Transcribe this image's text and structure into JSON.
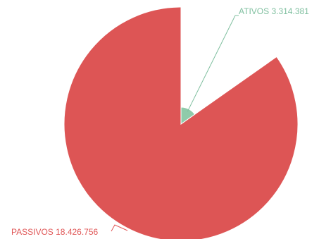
{
  "chart_data": {
    "type": "pie",
    "slices": [
      {
        "label": "ATIVOS",
        "value": 3314381,
        "display": "ATIVOS 3.314.381",
        "color": "#8fcbaa"
      },
      {
        "label": "PASSIVOS",
        "value": 18426756,
        "display": "PASSIVOS 18.426.756",
        "color": "#dd5555"
      }
    ],
    "legend": "none",
    "label_color": {
      "ATIVOS": "#7fbf9f",
      "PASSIVOS": "#e05656"
    }
  }
}
